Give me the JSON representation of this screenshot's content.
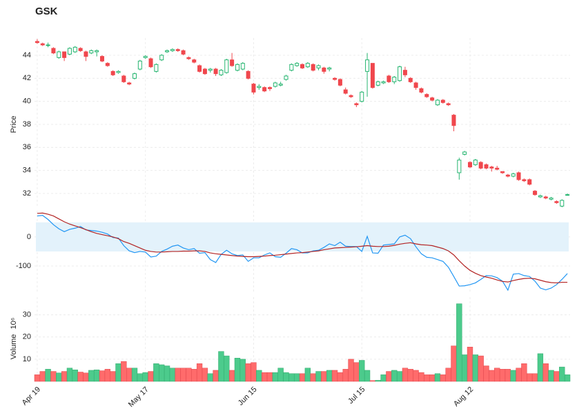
{
  "chart_data": [
    {
      "type": "candlestick",
      "title": "GSK",
      "ylabel": "Price",
      "categories": [
        "Apr 19",
        null,
        null,
        null,
        null,
        null,
        null,
        null,
        null,
        null,
        null,
        null,
        null,
        null,
        null,
        null,
        null,
        null,
        null,
        null,
        "May 17",
        null,
        null,
        null,
        null,
        null,
        null,
        null,
        null,
        null,
        null,
        null,
        null,
        null,
        null,
        null,
        null,
        null,
        null,
        null,
        "Jun 15",
        null,
        null,
        null,
        null,
        null,
        null,
        null,
        null,
        null,
        null,
        null,
        null,
        null,
        null,
        null,
        null,
        null,
        null,
        null,
        "Jul 15",
        null,
        null,
        null,
        null,
        null,
        null,
        null,
        null,
        null,
        null,
        null,
        null,
        null,
        null,
        null,
        null,
        null,
        null,
        null,
        "Aug 12",
        null,
        null,
        null,
        null,
        null,
        null,
        null,
        null,
        null,
        null,
        null,
        null,
        null,
        null,
        null,
        null,
        null,
        null
      ],
      "ohlc": [
        [
          45.2,
          45.4,
          45.0,
          45.1
        ],
        [
          45.0,
          45.1,
          44.8,
          44.9
        ],
        [
          44.9,
          45.1,
          44.7,
          44.9
        ],
        [
          44.6,
          44.7,
          44.1,
          44.2
        ],
        [
          43.8,
          44.4,
          43.7,
          44.3
        ],
        [
          44.3,
          44.3,
          43.5,
          43.8
        ],
        [
          44.1,
          44.7,
          44.0,
          44.6
        ],
        [
          44.3,
          44.8,
          44.2,
          44.7
        ],
        [
          44.6,
          44.7,
          44.3,
          44.4
        ],
        [
          44.3,
          44.4,
          43.5,
          43.9
        ],
        [
          44.2,
          44.5,
          44.1,
          44.4
        ],
        [
          44.3,
          44.5,
          43.9,
          44.4
        ],
        [
          43.9,
          44.0,
          43.4,
          43.5
        ],
        [
          43.3,
          43.4,
          43.0,
          43.1
        ],
        [
          42.6,
          42.7,
          42.2,
          42.3
        ],
        [
          42.5,
          42.7,
          42.4,
          42.6
        ],
        [
          42.2,
          42.3,
          41.6,
          41.7
        ],
        [
          41.6,
          41.7,
          41.4,
          41.5
        ],
        [
          42.0,
          42.5,
          41.9,
          42.4
        ],
        [
          42.8,
          43.6,
          42.7,
          43.5
        ],
        [
          43.8,
          44.0,
          43.7,
          43.9
        ],
        [
          43.7,
          43.8,
          42.9,
          43.0
        ],
        [
          42.6,
          43.3,
          42.5,
          43.2
        ],
        [
          43.6,
          44.1,
          43.5,
          44.0
        ],
        [
          44.3,
          44.5,
          44.2,
          44.4
        ],
        [
          44.4,
          44.6,
          44.3,
          44.5
        ],
        [
          44.5,
          44.6,
          44.3,
          44.4
        ],
        [
          44.4,
          44.5,
          44.0,
          44.1
        ],
        [
          43.8,
          43.9,
          43.6,
          43.7
        ],
        [
          43.6,
          43.7,
          43.3,
          43.4
        ],
        [
          43.1,
          43.2,
          42.5,
          42.6
        ],
        [
          42.8,
          42.9,
          42.3,
          42.4
        ],
        [
          42.7,
          42.9,
          42.5,
          42.8
        ],
        [
          42.8,
          42.9,
          42.2,
          42.4
        ],
        [
          42.3,
          42.8,
          42.2,
          42.7
        ],
        [
          42.5,
          43.7,
          42.4,
          43.6
        ],
        [
          43.6,
          44.2,
          43.0,
          43.1
        ],
        [
          42.7,
          43.3,
          42.6,
          43.2
        ],
        [
          42.8,
          43.4,
          42.7,
          43.3
        ],
        [
          42.6,
          42.7,
          41.9,
          42.0
        ],
        [
          41.5,
          41.6,
          40.6,
          40.8
        ],
        [
          41.2,
          41.5,
          41.0,
          41.3
        ],
        [
          41.2,
          41.3,
          40.8,
          40.9
        ],
        [
          41.2,
          41.3,
          40.9,
          41.1
        ],
        [
          41.3,
          41.7,
          41.2,
          41.6
        ],
        [
          41.4,
          41.7,
          41.3,
          41.5
        ],
        [
          41.9,
          42.3,
          41.8,
          42.2
        ],
        [
          42.7,
          43.3,
          42.6,
          43.2
        ],
        [
          43.1,
          43.4,
          43.0,
          43.3
        ],
        [
          43.2,
          43.3,
          42.8,
          42.9
        ],
        [
          43.0,
          43.4,
          42.9,
          43.3
        ],
        [
          43.2,
          43.3,
          42.6,
          42.7
        ],
        [
          42.9,
          43.2,
          42.7,
          43.1
        ],
        [
          42.9,
          43.0,
          42.4,
          42.6
        ],
        [
          42.8,
          43.0,
          42.6,
          42.9
        ],
        [
          42.0,
          42.1,
          41.8,
          41.9
        ],
        [
          41.9,
          42.0,
          41.3,
          41.4
        ],
        [
          41.0,
          41.2,
          40.6,
          40.7
        ],
        [
          40.5,
          40.6,
          40.3,
          40.4
        ],
        [
          39.8,
          39.9,
          39.5,
          39.7
        ],
        [
          40.0,
          40.9,
          39.9,
          40.8
        ],
        [
          42.6,
          44.2,
          40.4,
          43.6
        ],
        [
          43.3,
          43.3,
          41.1,
          41.2
        ],
        [
          41.4,
          41.8,
          41.3,
          41.7
        ],
        [
          41.6,
          41.8,
          41.5,
          41.7
        ],
        [
          42.2,
          42.3,
          41.6,
          41.7
        ],
        [
          41.7,
          42.2,
          41.5,
          42.1
        ],
        [
          41.8,
          43.1,
          41.7,
          43.0
        ],
        [
          42.7,
          43.0,
          42.1,
          42.3
        ],
        [
          42.0,
          42.1,
          41.6,
          41.7
        ],
        [
          41.6,
          41.7,
          41.0,
          41.2
        ],
        [
          41.1,
          41.2,
          40.7,
          40.8
        ],
        [
          40.6,
          40.7,
          40.3,
          40.4
        ],
        [
          40.3,
          40.4,
          40.0,
          40.1
        ],
        [
          39.7,
          40.2,
          39.6,
          40.1
        ],
        [
          40.1,
          40.2,
          39.8,
          39.9
        ],
        [
          39.8,
          39.9,
          39.6,
          39.7
        ],
        [
          38.8,
          38.9,
          37.4,
          37.9
        ],
        [
          33.8,
          35.1,
          33.2,
          34.9
        ],
        [
          35.4,
          35.7,
          35.3,
          35.6
        ],
        [
          34.7,
          34.8,
          34.2,
          34.3
        ],
        [
          34.5,
          35.0,
          34.4,
          34.9
        ],
        [
          34.7,
          34.8,
          34.1,
          34.2
        ],
        [
          34.5,
          34.6,
          34.1,
          34.2
        ],
        [
          34.3,
          34.4,
          33.9,
          34.2
        ],
        [
          34.2,
          34.4,
          34.0,
          34.1
        ],
        [
          33.9,
          33.9,
          33.7,
          33.8
        ],
        [
          33.6,
          33.7,
          33.4,
          33.5
        ],
        [
          33.5,
          33.8,
          33.4,
          33.7
        ],
        [
          33.8,
          33.9,
          33.1,
          33.2
        ],
        [
          33.2,
          33.3,
          33.0,
          33.1
        ],
        [
          33.2,
          33.3,
          32.7,
          32.8
        ],
        [
          32.2,
          32.3,
          31.8,
          31.9
        ],
        [
          31.7,
          31.9,
          31.6,
          31.8
        ],
        [
          31.7,
          31.8,
          31.5,
          31.6
        ],
        [
          31.5,
          31.7,
          31.4,
          31.6
        ],
        [
          31.3,
          31.4,
          31.1,
          31.2
        ],
        [
          30.9,
          31.5,
          30.8,
          31.4
        ],
        [
          31.9,
          32.0,
          31.8,
          31.9
        ]
      ],
      "up_color": "#26b570",
      "down_color": "#f0474d",
      "ylim": [
        30.8,
        45.5
      ],
      "yticks": [
        32,
        34,
        36,
        38,
        40,
        42,
        44
      ],
      "grid": true
    },
    {
      "type": "line",
      "series": [
        {
          "color": "#2196f3",
          "values": [
            72,
            74,
            60,
            42,
            28,
            18,
            26,
            30,
            36,
            24,
            22,
            20,
            16,
            10,
            -2,
            -4,
            -30,
            -48,
            -54,
            -50,
            -52,
            -69,
            -66,
            -50,
            -42,
            -32,
            -28,
            -38,
            -44,
            -40,
            -56,
            -54,
            -78,
            -88,
            -60,
            -46,
            -58,
            -64,
            -62,
            -84,
            -72,
            -72,
            -62,
            -55,
            -68,
            -70,
            -56,
            -40,
            -44,
            -55,
            -55,
            -48,
            -46,
            -36,
            -24,
            -30,
            -18,
            -32,
            -33,
            -33,
            -50,
            2,
            -55,
            -56,
            -28,
            -26,
            -24,
            0,
            6,
            -6,
            -34,
            -58,
            -70,
            -72,
            -78,
            -84,
            -104,
            -136,
            -169,
            -168,
            -164,
            -158,
            -146,
            -133,
            -134,
            -140,
            -152,
            -183,
            -128,
            -126,
            -133,
            -136,
            -152,
            -176,
            -182,
            -176,
            -164,
            -146,
            -126
          ]
        },
        {
          "color": "#b22222",
          "values": [
            81,
            82,
            78,
            72,
            62,
            52,
            44,
            38,
            32,
            25,
            18,
            12,
            8,
            4,
            0,
            -6,
            -16,
            -22,
            -30,
            -38,
            -46,
            -50,
            -52,
            -52,
            -51,
            -50,
            -50,
            -49,
            -49,
            -48,
            -48,
            -50,
            -55,
            -58,
            -60,
            -62,
            -64,
            -66,
            -67,
            -68,
            -68,
            -67,
            -66,
            -64,
            -63,
            -61,
            -59,
            -57,
            -55,
            -54,
            -52,
            -50,
            -48,
            -44,
            -41,
            -38,
            -37,
            -36,
            -35,
            -34,
            -32,
            -30,
            -32,
            -33,
            -33,
            -32,
            -29,
            -25,
            -22,
            -20,
            -24,
            -27,
            -28,
            -30,
            -35,
            -40,
            -48,
            -62,
            -82,
            -100,
            -115,
            -125,
            -133,
            -138,
            -142,
            -148,
            -153,
            -155,
            -150,
            -146,
            -143,
            -142,
            -144,
            -149,
            -154,
            -157,
            -158,
            -156,
            -156
          ]
        }
      ],
      "band": [
        -50,
        50
      ],
      "band_color": "#e3f2fb",
      "ylim": [
        -195,
        90
      ],
      "yticks": [
        -100,
        0
      ],
      "grid": true
    },
    {
      "type": "bar",
      "ylabel": "Volume",
      "ylabel_scale": "10⁶",
      "values": [
        3,
        4.5,
        5.5,
        4.5,
        3.8,
        4.5,
        6,
        5.2,
        4.2,
        3.8,
        5,
        5.2,
        4.8,
        5.5,
        4.5,
        8,
        9,
        6,
        6,
        3.5,
        4,
        4.5,
        8,
        7.5,
        7,
        6,
        6,
        6,
        6,
        5.5,
        8,
        6,
        3.5,
        5,
        13.5,
        11.5,
        5,
        10.5,
        10,
        8,
        8.5,
        5,
        4,
        4,
        4,
        6,
        4,
        3.5,
        3.5,
        3.5,
        6,
        3.5,
        4.5,
        4.5,
        5,
        5,
        4,
        5.5,
        10,
        8.5,
        9.5,
        5,
        0.4,
        0.5,
        3,
        4.5,
        5,
        4.5,
        6,
        5.5,
        5,
        4,
        3,
        3,
        3.5,
        3,
        6,
        16,
        35,
        12,
        15.5,
        12,
        11.5,
        7,
        5,
        6,
        5.5,
        5.5,
        5,
        6,
        8,
        3.5,
        3.5,
        12.5,
        8,
        5,
        4.5,
        6.5,
        3
      ],
      "up_color": "#4ccb8c",
      "down_color": "#ff6b6b",
      "ylim": [
        0,
        38
      ],
      "yticks": [
        10,
        20,
        30
      ],
      "grid": true
    }
  ]
}
